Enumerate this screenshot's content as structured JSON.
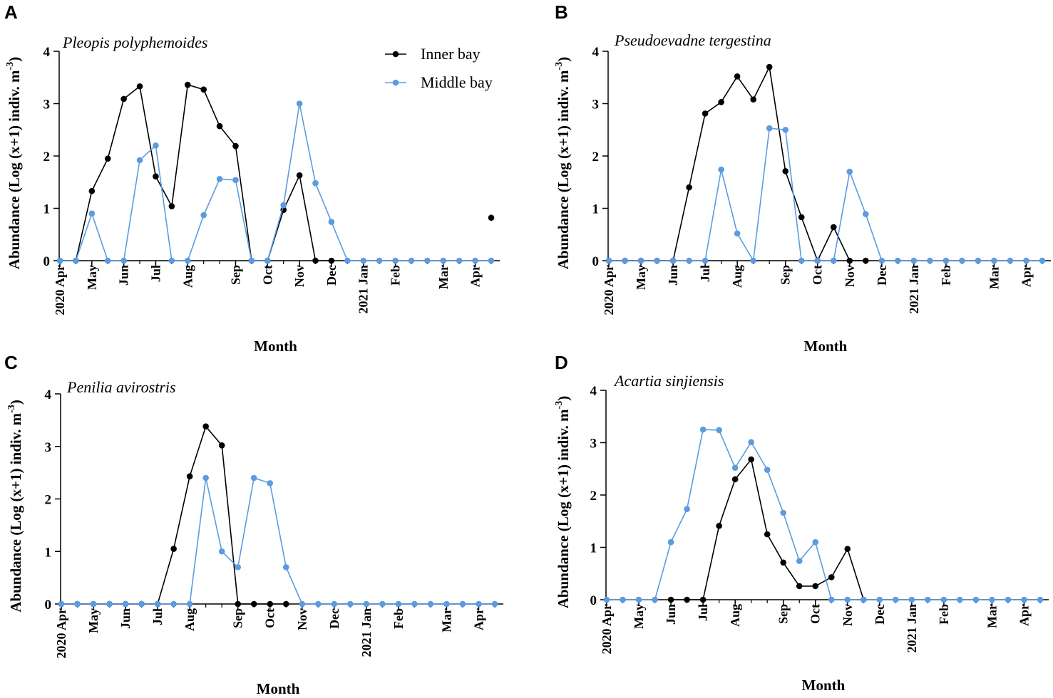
{
  "legend": {
    "series": [
      {
        "name": "Inner bay",
        "color": "#000000"
      },
      {
        "name": "Middle bay",
        "color": "#5b9bdf"
      }
    ]
  },
  "chart_data": [
    {
      "panel": "A",
      "type": "line",
      "title": "Pleopis polyphemoides",
      "xlabel": "Month",
      "ylabel": "Abundance (Log (x+1) indiv. m-3)",
      "ylim": [
        0,
        4
      ],
      "yticks": [
        "0",
        "1",
        "2",
        "3",
        "4"
      ],
      "x_count": 28,
      "month_ticks": [
        {
          "x": 0,
          "label": "2020 Apr"
        },
        {
          "x": 2,
          "label": "May"
        },
        {
          "x": 4,
          "label": "Jun"
        },
        {
          "x": 6,
          "label": "Jul"
        },
        {
          "x": 8,
          "label": "Aug"
        },
        {
          "x": 11,
          "label": "Sep"
        },
        {
          "x": 13,
          "label": "Oct"
        },
        {
          "x": 15,
          "label": "Nov"
        },
        {
          "x": 17,
          "label": "Dec"
        },
        {
          "x": 19,
          "label": "2021 Jan"
        },
        {
          "x": 21,
          "label": "Feb"
        },
        {
          "x": 24,
          "label": "Mar"
        },
        {
          "x": 26,
          "label": "Apr"
        }
      ],
      "series": [
        {
          "name": "Inner bay",
          "color": "#000000",
          "values": [
            0,
            0,
            1.33,
            1.95,
            3.09,
            3.33,
            1.61,
            1.04,
            3.36,
            3.27,
            2.57,
            2.19,
            0,
            0,
            0.97,
            1.63,
            0,
            0,
            null,
            null,
            null,
            null,
            null,
            null,
            null,
            null,
            null,
            0.82
          ]
        },
        {
          "name": "Middle bay",
          "color": "#5b9bdf",
          "values": [
            0,
            0,
            0.9,
            0,
            0,
            1.92,
            2.2,
            0,
            0,
            0.87,
            1.56,
            1.54,
            0,
            0,
            1.06,
            3.0,
            1.48,
            0.74,
            0,
            0,
            0,
            0,
            0,
            0,
            0,
            0,
            0,
            0
          ]
        }
      ]
    },
    {
      "panel": "B",
      "type": "line",
      "title": "Pseudoevadne tergestina",
      "xlabel": "Month",
      "ylabel": "Abundance (Log (x+1) indiv. m-3)",
      "ylim": [
        0,
        4
      ],
      "yticks": [
        "0",
        "1",
        "2",
        "3",
        "4"
      ],
      "x_count": 28,
      "month_ticks": [
        {
          "x": 0,
          "label": "2020 Apr"
        },
        {
          "x": 2,
          "label": "May"
        },
        {
          "x": 4,
          "label": "Jun"
        },
        {
          "x": 6,
          "label": "Jul"
        },
        {
          "x": 8,
          "label": "Aug"
        },
        {
          "x": 11,
          "label": "Sep"
        },
        {
          "x": 13,
          "label": "Oct"
        },
        {
          "x": 15,
          "label": "Nov"
        },
        {
          "x": 17,
          "label": "Dec"
        },
        {
          "x": 19,
          "label": "2021 Jan"
        },
        {
          "x": 21,
          "label": "Feb"
        },
        {
          "x": 24,
          "label": "Mar"
        },
        {
          "x": 26,
          "label": "Apr"
        }
      ],
      "series": [
        {
          "name": "Inner bay",
          "color": "#000000",
          "values": [
            0,
            0,
            0,
            0,
            0,
            1.4,
            2.81,
            3.03,
            3.52,
            3.08,
            3.7,
            1.71,
            0.83,
            0,
            0.64,
            0,
            0,
            null,
            null,
            null,
            null,
            null,
            null,
            null,
            null,
            null,
            null,
            null
          ]
        },
        {
          "name": "Middle bay",
          "color": "#5b9bdf",
          "values": [
            0,
            0,
            0,
            0,
            0,
            0,
            0,
            1.74,
            0.52,
            0,
            2.53,
            2.5,
            0,
            0,
            0,
            1.7,
            0.89,
            0,
            0,
            0,
            0,
            0,
            0,
            0,
            0,
            0,
            0,
            0
          ]
        }
      ]
    },
    {
      "panel": "C",
      "type": "line",
      "title": "Penilia avirostris",
      "xlabel": "Month",
      "ylabel": "Abundance (Log (x+1) indiv. m-3)",
      "ylim": [
        0,
        4
      ],
      "yticks": [
        "0",
        "1",
        "2",
        "3",
        "4"
      ],
      "x_count": 28,
      "month_ticks": [
        {
          "x": 0,
          "label": "2020 Apr"
        },
        {
          "x": 2,
          "label": "May"
        },
        {
          "x": 4,
          "label": "Jun"
        },
        {
          "x": 6,
          "label": "Jul"
        },
        {
          "x": 8,
          "label": "Aug"
        },
        {
          "x": 11,
          "label": "Sep"
        },
        {
          "x": 13,
          "label": "Oct"
        },
        {
          "x": 15,
          "label": "Nov"
        },
        {
          "x": 17,
          "label": "Dec"
        },
        {
          "x": 19,
          "label": "2021 Jan"
        },
        {
          "x": 21,
          "label": "Feb"
        },
        {
          "x": 24,
          "label": "Mar"
        },
        {
          "x": 26,
          "label": "Apr"
        }
      ],
      "series": [
        {
          "name": "Inner bay",
          "color": "#000000",
          "values": [
            0,
            0,
            0,
            0,
            0,
            0,
            0,
            1.05,
            2.43,
            3.38,
            3.02,
            0,
            0,
            0,
            0,
            null,
            null,
            null,
            null,
            null,
            null,
            null,
            null,
            null,
            null,
            null,
            null,
            null
          ]
        },
        {
          "name": "Middle bay",
          "color": "#5b9bdf",
          "values": [
            0,
            0,
            0,
            0,
            0,
            0,
            0,
            0,
            0,
            2.4,
            1.0,
            0.7,
            2.4,
            2.3,
            0.7,
            0,
            0,
            0,
            0,
            0,
            0,
            0,
            0,
            0,
            0,
            0,
            0,
            0
          ]
        }
      ]
    },
    {
      "panel": "D",
      "type": "line",
      "title": "Acartia sinjiensis",
      "xlabel": "Month",
      "ylabel": "Abundance (Log (x+1) indiv. m-3)",
      "ylim": [
        0,
        4
      ],
      "yticks": [
        "0",
        "1",
        "2",
        "3",
        "4"
      ],
      "x_count": 28,
      "month_ticks": [
        {
          "x": 0,
          "label": "2020 Apr"
        },
        {
          "x": 2,
          "label": "May"
        },
        {
          "x": 4,
          "label": "Jun"
        },
        {
          "x": 6,
          "label": "Jul"
        },
        {
          "x": 8,
          "label": "Aug"
        },
        {
          "x": 11,
          "label": "Sep"
        },
        {
          "x": 13,
          "label": "Oct"
        },
        {
          "x": 15,
          "label": "Nov"
        },
        {
          "x": 17,
          "label": "Dec"
        },
        {
          "x": 19,
          "label": "2021 Jan"
        },
        {
          "x": 21,
          "label": "Feb"
        },
        {
          "x": 24,
          "label": "Mar"
        },
        {
          "x": 26,
          "label": "Apr"
        }
      ],
      "series": [
        {
          "name": "Inner bay",
          "color": "#000000",
          "values": [
            null,
            null,
            null,
            null,
            0,
            0,
            0,
            1.41,
            2.3,
            2.68,
            1.25,
            0.71,
            0.26,
            0.26,
            0.43,
            0.97,
            0,
            null,
            null,
            null,
            null,
            null,
            null,
            null,
            null,
            null,
            null,
            null
          ]
        },
        {
          "name": "Middle bay",
          "color": "#5b9bdf",
          "values": [
            0,
            0,
            0,
            0,
            1.1,
            1.73,
            3.25,
            3.24,
            2.52,
            3.01,
            2.48,
            1.66,
            0.74,
            1.1,
            0,
            0,
            0,
            0,
            0,
            0,
            0,
            0,
            0,
            0,
            0,
            0,
            0,
            0
          ]
        }
      ]
    }
  ]
}
